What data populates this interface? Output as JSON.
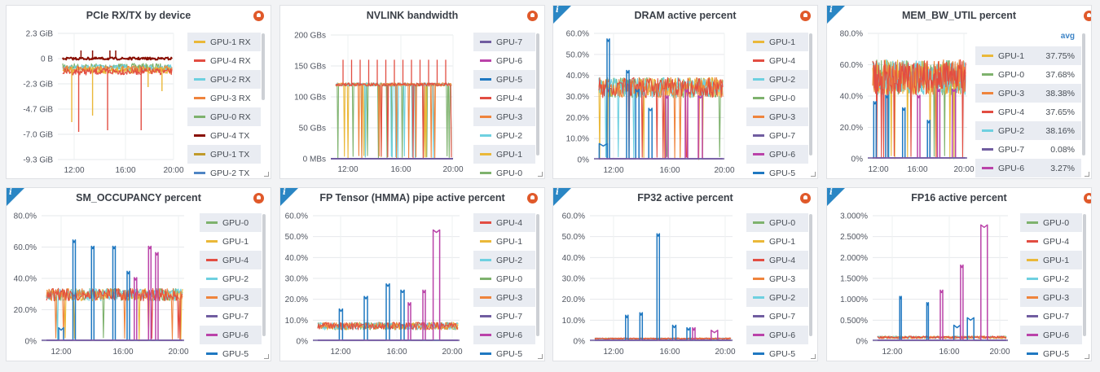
{
  "colors": {
    "GPU-0": "#7eb26d",
    "GPU-1": "#eab839",
    "GPU-2": "#6ed0e0",
    "GPU-3": "#ef843c",
    "GPU-4": "#e24d42",
    "GPU-5": "#1f78c1",
    "GPU-6": "#ba43a9",
    "GPU-7": "#705da0",
    "GPU-4 TX": "#890f02",
    "GPU-1 TX": "#c09a2a",
    "GPU-2 TX": "#4f85c4",
    "GPU-0 RX": "#7eb26d",
    "GPU-1 RX": "#eab839",
    "GPU-4 RX": "#e24d42",
    "GPU-2 RX": "#6ed0e0",
    "GPU-3 RX": "#ef843c"
  },
  "panels": [
    {
      "title": "PCIe RX/TX by device",
      "info": false,
      "yticks": [
        "2.3 GiB",
        "0 B",
        "-2.3 GiB",
        "-4.7 GiB",
        "-7.0 GiB",
        "-9.3 GiB"
      ],
      "xticks": [
        "12:00",
        "16:00",
        "20:00"
      ],
      "legend": [
        {
          "name": "GPU-1 RX"
        },
        {
          "name": "GPU-4 RX"
        },
        {
          "name": "GPU-2 RX"
        },
        {
          "name": "GPU-3 RX"
        },
        {
          "name": "GPU-0 RX"
        },
        {
          "name": "GPU-4 TX"
        },
        {
          "name": "GPU-1 TX"
        },
        {
          "name": "GPU-2 TX"
        }
      ]
    },
    {
      "title": "NVLINK bandwidth",
      "info": false,
      "yticks": [
        "200 GBs",
        "150 GBs",
        "100 GBs",
        "50 GBs",
        "0 MBs"
      ],
      "xticks": [
        "12:00",
        "16:00",
        "20:00"
      ],
      "legend": [
        {
          "name": "GPU-7"
        },
        {
          "name": "GPU-6"
        },
        {
          "name": "GPU-5"
        },
        {
          "name": "GPU-4"
        },
        {
          "name": "GPU-3"
        },
        {
          "name": "GPU-2"
        },
        {
          "name": "GPU-1"
        },
        {
          "name": "GPU-0"
        }
      ]
    },
    {
      "title": "DRAM active percent",
      "info": true,
      "yticks": [
        "60.0%",
        "50.0%",
        "40.0%",
        "30.0%",
        "20.0%",
        "10.0%",
        "0%"
      ],
      "xticks": [
        "12:00",
        "16:00",
        "20:00"
      ],
      "legend": [
        {
          "name": "GPU-1"
        },
        {
          "name": "GPU-4"
        },
        {
          "name": "GPU-2"
        },
        {
          "name": "GPU-0"
        },
        {
          "name": "GPU-3"
        },
        {
          "name": "GPU-7"
        },
        {
          "name": "GPU-6"
        },
        {
          "name": "GPU-5"
        }
      ]
    },
    {
      "title": "MEM_BW_UTIL percent",
      "info": true,
      "legend_header": "avg",
      "yticks": [
        "80.0%",
        "60.0%",
        "40.0%",
        "20.0%",
        "0%"
      ],
      "xticks": [
        "12:00",
        "16:00",
        "20:00"
      ],
      "legend": [
        {
          "name": "GPU-1",
          "value": "37.75%"
        },
        {
          "name": "GPU-0",
          "value": "37.68%"
        },
        {
          "name": "GPU-3",
          "value": "38.38%"
        },
        {
          "name": "GPU-4",
          "value": "37.65%"
        },
        {
          "name": "GPU-2",
          "value": "38.16%"
        },
        {
          "name": "GPU-7",
          "value": "0.08%"
        },
        {
          "name": "GPU-6",
          "value": "3.27%"
        }
      ]
    },
    {
      "title": "SM_OCCUPANCY percent",
      "info": true,
      "yticks": [
        "80.0%",
        "60.0%",
        "40.0%",
        "20.0%",
        "0%"
      ],
      "xticks": [
        "12:00",
        "16:00",
        "20:00"
      ],
      "legend": [
        {
          "name": "GPU-0"
        },
        {
          "name": "GPU-1"
        },
        {
          "name": "GPU-4"
        },
        {
          "name": "GPU-2"
        },
        {
          "name": "GPU-3"
        },
        {
          "name": "GPU-7"
        },
        {
          "name": "GPU-6"
        },
        {
          "name": "GPU-5"
        }
      ]
    },
    {
      "title": "FP Tensor (HMMA) pipe active percent",
      "info": true,
      "yticks": [
        "60.0%",
        "50.0%",
        "40.0%",
        "30.0%",
        "20.0%",
        "10.0%",
        "0%"
      ],
      "xticks": [
        "12:00",
        "16:00",
        "20:00"
      ],
      "legend": [
        {
          "name": "GPU-4"
        },
        {
          "name": "GPU-1"
        },
        {
          "name": "GPU-2"
        },
        {
          "name": "GPU-0"
        },
        {
          "name": "GPU-3"
        },
        {
          "name": "GPU-7"
        },
        {
          "name": "GPU-6"
        },
        {
          "name": "GPU-5"
        }
      ]
    },
    {
      "title": "FP32 active percent",
      "info": true,
      "yticks": [
        "60.0%",
        "50.0%",
        "40.0%",
        "30.0%",
        "20.0%",
        "10.0%",
        "0%"
      ],
      "xticks": [
        "12:00",
        "16:00",
        "20:00"
      ],
      "legend": [
        {
          "name": "GPU-0"
        },
        {
          "name": "GPU-1"
        },
        {
          "name": "GPU-4"
        },
        {
          "name": "GPU-3"
        },
        {
          "name": "GPU-2"
        },
        {
          "name": "GPU-7"
        },
        {
          "name": "GPU-6"
        },
        {
          "name": "GPU-5"
        }
      ]
    },
    {
      "title": "FP16 active percent",
      "info": true,
      "yticks": [
        "3.000%",
        "2.500%",
        "2.000%",
        "1.500%",
        "1.000%",
        "0.500%",
        "0%"
      ],
      "xticks": [
        "12:00",
        "16:00",
        "20:00"
      ],
      "legend": [
        {
          "name": "GPU-0"
        },
        {
          "name": "GPU-4"
        },
        {
          "name": "GPU-1"
        },
        {
          "name": "GPU-2"
        },
        {
          "name": "GPU-3"
        },
        {
          "name": "GPU-7"
        },
        {
          "name": "GPU-6"
        },
        {
          "name": "GPU-5"
        }
      ]
    }
  ]
}
